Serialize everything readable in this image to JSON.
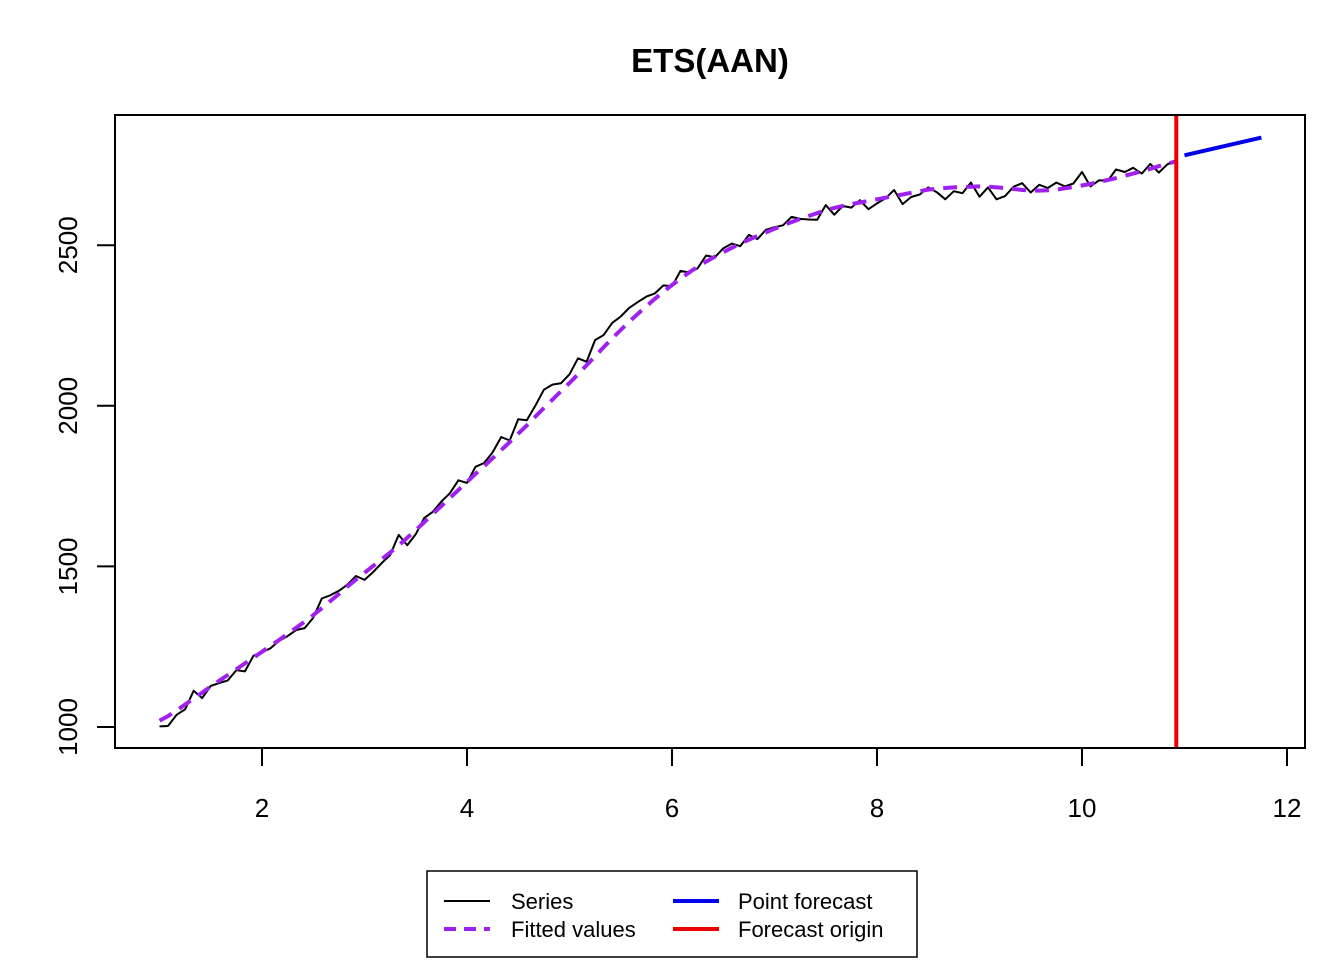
{
  "chart_data": {
    "type": "line",
    "title": "ETS(AAN)",
    "xlabel": "",
    "ylabel": "",
    "xlim": [
      1,
      11.75
    ],
    "ylim": [
      1000,
      2835
    ],
    "x_ticks": [
      2,
      4,
      6,
      8,
      10,
      12
    ],
    "y_ticks": [
      1000,
      1500,
      2000,
      2500
    ],
    "grid": false,
    "legend": {
      "placement": "bottom-center",
      "entries": [
        "Series",
        "Fitted values",
        "Point forecast",
        "Forecast origin"
      ]
    },
    "colors": {
      "series": "#000000",
      "fitted": "#a020f0",
      "forecast": "#0000ee",
      "origin": "#ee0000"
    },
    "series": [
      {
        "name": "Series",
        "x_start": 1,
        "x_step": 0.08333,
        "values": [
          1002,
          1003,
          1038,
          1055,
          1113,
          1090,
          1128,
          1137,
          1145,
          1177,
          1173,
          1222,
          1233,
          1245,
          1268,
          1283,
          1302,
          1308,
          1340,
          1400,
          1410,
          1424,
          1443,
          1470,
          1458,
          1482,
          1510,
          1535,
          1598,
          1566,
          1600,
          1651,
          1670,
          1702,
          1728,
          1768,
          1760,
          1810,
          1822,
          1855,
          1903,
          1892,
          1958,
          1955,
          2000,
          2050,
          2066,
          2070,
          2098,
          2148,
          2137,
          2205,
          2220,
          2258,
          2278,
          2305,
          2323,
          2340,
          2350,
          2375,
          2372,
          2420,
          2415,
          2428,
          2468,
          2462,
          2490,
          2505,
          2497,
          2532,
          2519,
          2548,
          2556,
          2562,
          2588,
          2582,
          2580,
          2579,
          2625,
          2595,
          2622,
          2617,
          2640,
          2612,
          2630,
          2646,
          2672,
          2628,
          2650,
          2658,
          2680,
          2665,
          2643,
          2668,
          2662,
          2695,
          2651,
          2680,
          2643,
          2653,
          2682,
          2693,
          2664,
          2688,
          2678,
          2695,
          2683,
          2692,
          2728,
          2683,
          2702,
          2700,
          2736,
          2728,
          2741,
          2723,
          2753,
          2726,
          2752,
          2765
        ]
      },
      {
        "name": "Fitted values",
        "x_start": 1,
        "x_step": 0.08333,
        "values": [
          1020,
          1034,
          1051,
          1070,
          1089,
          1107,
          1126,
          1144,
          1162,
          1180,
          1198,
          1216,
          1234,
          1253,
          1271,
          1290,
          1309,
          1328,
          1348,
          1370,
          1392,
          1414,
          1437,
          1459,
          1480,
          1501,
          1522,
          1543,
          1565,
          1589,
          1613,
          1638,
          1663,
          1688,
          1713,
          1738,
          1763,
          1788,
          1812,
          1837,
          1862,
          1887,
          1913,
          1939,
          1966,
          1993,
          2019,
          2045,
          2071,
          2098,
          2126,
          2154,
          2182,
          2210,
          2236,
          2262,
          2286,
          2310,
          2333,
          2355,
          2376,
          2396,
          2415,
          2433,
          2449,
          2464,
          2478,
          2492,
          2505,
          2517,
          2529,
          2540,
          2551,
          2562,
          2572,
          2582,
          2591,
          2600,
          2609,
          2616,
          2622,
          2628,
          2633,
          2638,
          2643,
          2648,
          2653,
          2658,
          2663,
          2668,
          2673,
          2676,
          2678,
          2680,
          2681,
          2682,
          2683,
          2682,
          2680,
          2678,
          2675,
          2672,
          2670,
          2670,
          2671,
          2673,
          2677,
          2681,
          2686,
          2691,
          2697,
          2703,
          2709,
          2716,
          2723,
          2730,
          2738,
          2746,
          2754,
          2761
        ]
      },
      {
        "name": "Point forecast",
        "x": [
          11,
          11.75
        ],
        "values": [
          2780,
          2835
        ]
      }
    ],
    "forecast_origin": 10.92
  }
}
